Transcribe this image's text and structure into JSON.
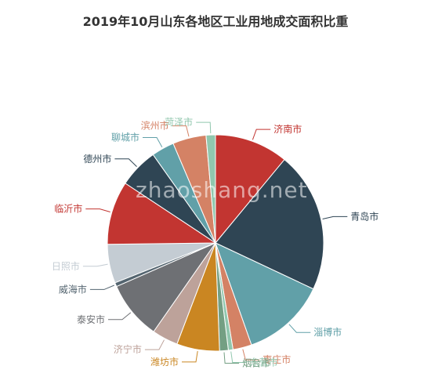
{
  "chart_data": {
    "type": "pie",
    "title": "2019年10月山东各地区工业用地成交面积比重",
    "slices": [
      {
        "label": "济南市",
        "value": 11.0,
        "color": "#c23531"
      },
      {
        "label": "青岛市",
        "value": 21.0,
        "color": "#2f4554"
      },
      {
        "label": "淄博市",
        "value": 12.6,
        "color": "#61a0a8"
      },
      {
        "label": "枣庄市",
        "value": 2.8,
        "color": "#d48265"
      },
      {
        "label": "东营市",
        "value": 0.7,
        "color": "#91c7ae"
      },
      {
        "label": "烟台市",
        "value": 1.3,
        "color": "#749f83"
      },
      {
        "label": "潍坊市",
        "value": 6.4,
        "color": "#ca8622"
      },
      {
        "label": "济宁市",
        "value": 3.9,
        "color": "#bda29a"
      },
      {
        "label": "泰安市",
        "value": 8.7,
        "color": "#6e7074"
      },
      {
        "label": "威海市",
        "value": 0.6,
        "color": "#546570"
      },
      {
        "label": "日照市",
        "value": 5.8,
        "color": "#c4ccd3"
      },
      {
        "label": "临沂市",
        "value": 9.5,
        "color": "#c23531"
      },
      {
        "label": "德州市",
        "value": 5.9,
        "color": "#2f4554"
      },
      {
        "label": "聊城市",
        "value": 3.4,
        "color": "#61a0a8"
      },
      {
        "label": "滨州市",
        "value": 5.0,
        "color": "#d48265"
      },
      {
        "label": "菏泽市",
        "value": 1.4,
        "color": "#91c7ae"
      }
    ],
    "legend": "none"
  },
  "watermark": "zhaoshang.net"
}
